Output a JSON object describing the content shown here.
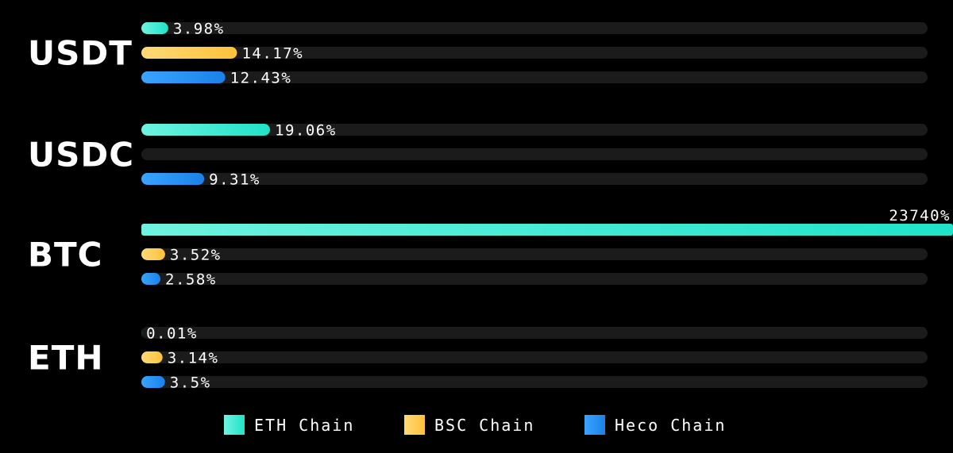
{
  "chart_data": {
    "type": "bar",
    "orientation": "horizontal",
    "categories": [
      "USDT",
      "USDC",
      "BTC",
      "ETH"
    ],
    "value_unit": "%",
    "series": [
      {
        "name": "ETH Chain",
        "color": "#1fe3c8",
        "color_light": "#6ff3e0",
        "values": [
          3.98,
          19.06,
          23740,
          0.01
        ],
        "labels": [
          "3.98%",
          "19.06%",
          "23740%",
          "0.01%"
        ]
      },
      {
        "name": "BSC Chain",
        "color": "#ffc23a",
        "color_light": "#ffd978",
        "values": [
          14.17,
          null,
          3.52,
          3.14
        ],
        "labels": [
          "14.17%",
          "",
          "3.52%",
          "3.14%"
        ]
      },
      {
        "name": "Heco Chain",
        "color": "#1a82e8",
        "color_light": "#3aa4ff",
        "values": [
          12.43,
          9.31,
          2.58,
          3.5
        ],
        "labels": [
          "12.43%",
          "9.31%",
          "2.58%",
          "3.5%"
        ]
      }
    ],
    "scale_max": 100,
    "legend_position": "bottom-center",
    "grid": false
  }
}
